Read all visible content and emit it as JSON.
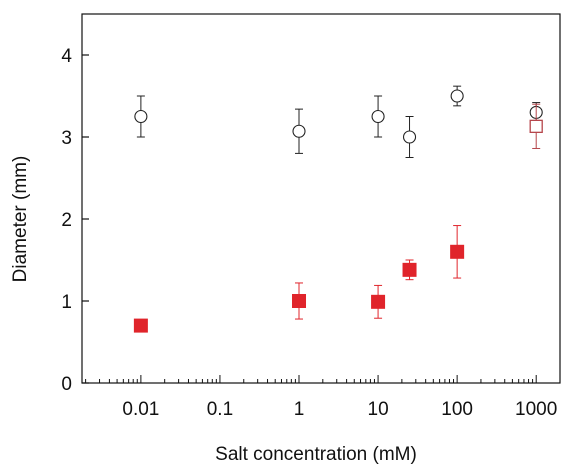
{
  "chart_data": {
    "type": "scatter",
    "title": "",
    "xlabel": "Salt concentration (mM)",
    "ylabel": "Diameter (mm)",
    "xscale": "log",
    "xlim": [
      0.0018,
      2000
    ],
    "ylim": [
      0,
      4.5
    ],
    "xticks": [
      0.01,
      0.1,
      1,
      10,
      100,
      1000
    ],
    "xtick_labels": [
      "0.01",
      "0.1",
      "1",
      "10",
      "100",
      "1000"
    ],
    "yticks": [
      0,
      1,
      2,
      3,
      4
    ],
    "ytick_labels": [
      "0",
      "1",
      "2",
      "3",
      "4"
    ],
    "grid": false,
    "legend": "none",
    "series": [
      {
        "marker": "open-circle",
        "color": "#222222",
        "points": [
          {
            "x": 0.01,
            "y": 3.25,
            "err": 0.25
          },
          {
            "x": 1,
            "y": 3.07,
            "err": 0.27
          },
          {
            "x": 10,
            "y": 3.25,
            "err": 0.25
          },
          {
            "x": 25,
            "y": 3.0,
            "err": 0.25
          },
          {
            "x": 100,
            "y": 3.5,
            "err": 0.12
          },
          {
            "x": 1000,
            "y": 3.3,
            "err": 0.12
          }
        ]
      },
      {
        "marker": "filled-square",
        "color": "#e0242b",
        "points": [
          {
            "x": 0.01,
            "y": 0.7,
            "err": 0.05
          },
          {
            "x": 1,
            "y": 1.0,
            "err": 0.22
          },
          {
            "x": 10,
            "y": 0.99,
            "err": 0.2
          },
          {
            "x": 25,
            "y": 1.38,
            "err": 0.12
          },
          {
            "x": 100,
            "y": 1.6,
            "err": 0.32
          }
        ]
      },
      {
        "marker": "open-square",
        "color": "#b5454a",
        "points": [
          {
            "x": 1000,
            "y": 3.13,
            "err": 0.27
          }
        ]
      }
    ]
  }
}
